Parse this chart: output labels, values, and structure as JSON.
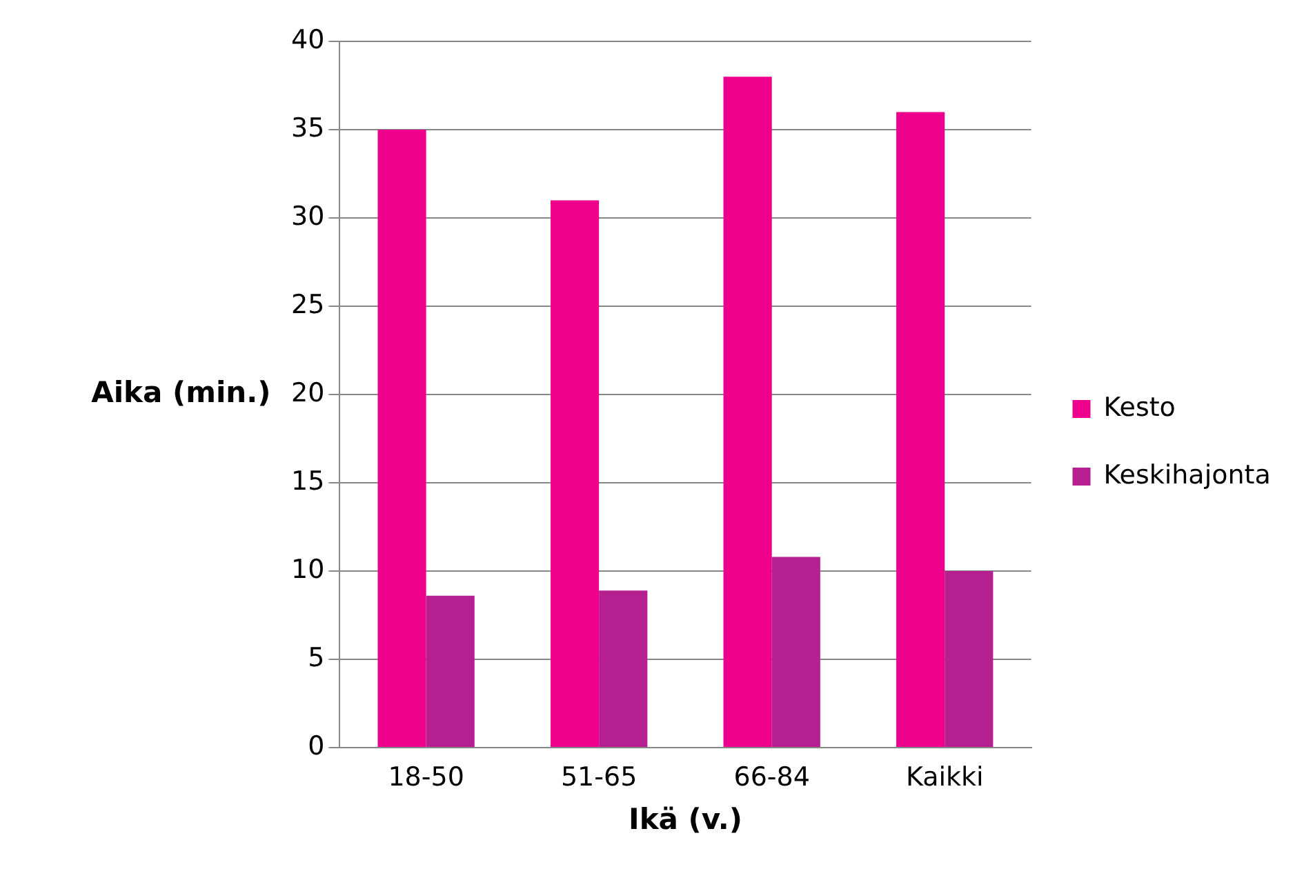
{
  "chart_data": {
    "type": "bar",
    "xlabel": "Ikä (v.)",
    "ylabel": "Aika (min.)",
    "categories": [
      "18-50",
      "51-65",
      "66-84",
      "Kaikki"
    ],
    "series": [
      {
        "name": "Kesto",
        "color": "#ec008c",
        "values": [
          35,
          31,
          38,
          36
        ]
      },
      {
        "name": "Keskihajonta",
        "color": "#b61f8f",
        "values": [
          8.6,
          8.9,
          10.8,
          10.0
        ]
      }
    ],
    "ylim": [
      0,
      40
    ],
    "yticks": [
      0,
      5,
      10,
      15,
      20,
      25,
      30,
      35,
      40
    ],
    "grid": "y",
    "legend": "right"
  }
}
